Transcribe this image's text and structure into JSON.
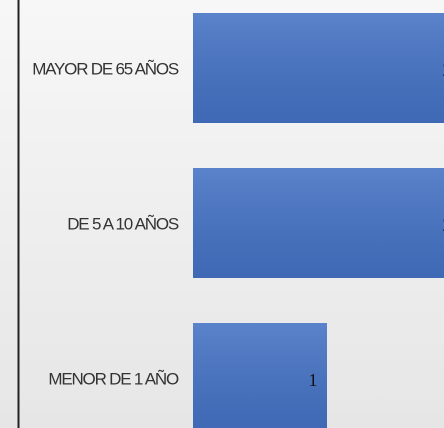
{
  "chart_data": {
    "type": "barh",
    "categories": [
      "MAYOR DE 65 AÑOS",
      "DE 5 A 10 AÑOS",
      "MENOR DE 1 AÑO"
    ],
    "values": [
      2,
      2,
      1
    ],
    "color": "#4472c4"
  }
}
